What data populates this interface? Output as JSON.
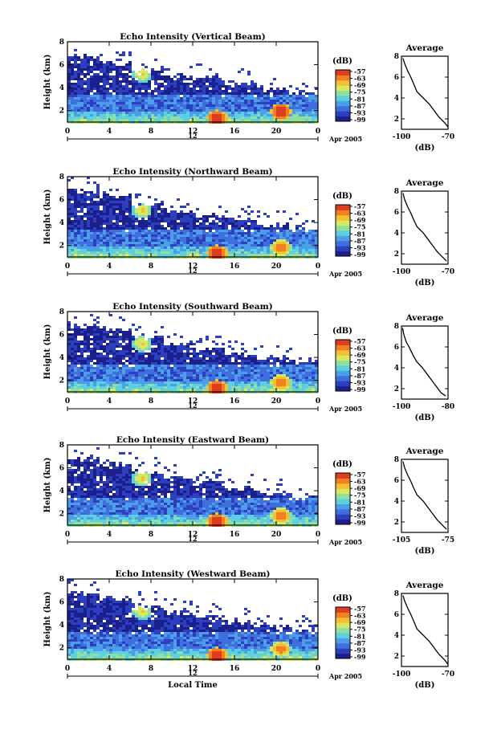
{
  "figure": {
    "common": {
      "ylabel": "Height (km)",
      "colorbar_unit": "(dB)",
      "colorbar_ticks": [
        "-57",
        "-63",
        "-69",
        "-75",
        "-81",
        "-87",
        "-93",
        "-99"
      ],
      "date_label": "Apr 2005",
      "x_ticks": [
        "0",
        "4",
        "8",
        "12",
        "16",
        "20",
        "0"
      ],
      "y_ticks": [
        "2",
        "4",
        "6",
        "8"
      ],
      "avg_title": "Average",
      "avg_xlabel": "(dB)",
      "bottom_xlabel": "Local Time"
    },
    "colors": [
      "#1a1f8c",
      "#2c3fbf",
      "#3f6fdc",
      "#4a9fe8",
      "#5ccfe0",
      "#8fe0a0",
      "#d8e860",
      "#f4c030",
      "#f08020",
      "#e03c20"
    ]
  },
  "chart_data": [
    {
      "type": "heatmap",
      "title": "Echo Intensity (Vertical Beam)",
      "xlabel": "",
      "ylabel": "Height (km)",
      "x": [
        0,
        24
      ],
      "ylim": [
        1,
        8
      ],
      "colorbar_range": [
        -99,
        -57
      ],
      "tick12": "12",
      "features": {
        "cloud_top_km": [
          6.8,
          6.3,
          5.6,
          5.2,
          4.9,
          4.4,
          4.0,
          3.6
        ],
        "hotspots": [
          [
            14.2,
            1.4,
            -57
          ],
          [
            20.3,
            2.0,
            -57
          ],
          [
            7.0,
            5.3,
            -69
          ]
        ]
      },
      "avg": {
        "title": "Average",
        "xlabel": "(dB)",
        "xticks": [
          "-100",
          "-70"
        ],
        "xlim": [
          -100,
          -70
        ],
        "ylim": [
          1,
          8
        ],
        "x": [
          -99,
          -98,
          -96,
          -94,
          -92,
          -90,
          -86,
          -82,
          -79,
          -76,
          -72,
          -70
        ],
        "y": [
          7.8,
          7.3,
          6.6,
          6.0,
          5.3,
          4.6,
          4.0,
          3.4,
          2.8,
          2.2,
          1.6,
          1.2
        ]
      }
    },
    {
      "type": "heatmap",
      "title": "Echo Intensity (Northward Beam)",
      "xlabel": "",
      "ylabel": "Height (km)",
      "x": [
        0,
        24
      ],
      "ylim": [
        1,
        8
      ],
      "colorbar_range": [
        -99,
        -57
      ],
      "tick12": "12",
      "features": {
        "cloud_top_km": [
          6.9,
          6.4,
          5.7,
          5.1,
          4.7,
          4.3,
          3.9,
          3.5
        ],
        "hotspots": [
          [
            14.2,
            1.4,
            -57
          ],
          [
            20.3,
            1.9,
            -63
          ],
          [
            7.0,
            5.2,
            -69
          ]
        ]
      },
      "avg": {
        "title": "Average",
        "xlabel": "(dB)",
        "xticks": [
          "-100",
          "-70"
        ],
        "xlim": [
          -100,
          -70
        ],
        "ylim": [
          1,
          8
        ],
        "x": [
          -99,
          -98,
          -96,
          -94,
          -92,
          -90,
          -86,
          -83,
          -80,
          -77,
          -73,
          -71
        ],
        "y": [
          7.8,
          7.2,
          6.5,
          5.9,
          5.2,
          4.6,
          4.0,
          3.4,
          2.8,
          2.2,
          1.6,
          1.3
        ]
      }
    },
    {
      "type": "heatmap",
      "title": "Echo Intensity (Southward Beam)",
      "xlabel": "",
      "ylabel": "Height (km)",
      "x": [
        0,
        24
      ],
      "ylim": [
        1,
        8
      ],
      "colorbar_range": [
        -99,
        -57
      ],
      "tick12": "12",
      "features": {
        "cloud_top_km": [
          6.9,
          6.5,
          5.8,
          5.3,
          4.8,
          4.4,
          4.0,
          3.7
        ],
        "hotspots": [
          [
            14.2,
            1.4,
            -57
          ],
          [
            20.3,
            1.9,
            -63
          ],
          [
            7.0,
            5.3,
            -69
          ]
        ]
      },
      "avg": {
        "title": "Average",
        "xlabel": "(dB)",
        "xticks": [
          "-100",
          "-80"
        ],
        "xlim": [
          -100,
          -80
        ],
        "ylim": [
          1,
          8
        ],
        "x": [
          -99.5,
          -99,
          -98,
          -96.5,
          -95,
          -93.5,
          -91,
          -89,
          -87,
          -85,
          -83,
          -81
        ],
        "y": [
          7.8,
          7.2,
          6.5,
          5.9,
          5.2,
          4.6,
          4.0,
          3.4,
          2.8,
          2.2,
          1.6,
          1.3
        ]
      }
    },
    {
      "type": "heatmap",
      "title": "Echo Intensity (Eastward Beam)",
      "xlabel": "",
      "ylabel": "Height (km)",
      "x": [
        0,
        24
      ],
      "ylim": [
        1,
        8
      ],
      "colorbar_range": [
        -99,
        -57
      ],
      "tick12": "12",
      "features": {
        "cloud_top_km": [
          6.8,
          6.4,
          5.7,
          5.1,
          4.7,
          4.3,
          3.9,
          3.5
        ],
        "hotspots": [
          [
            14.2,
            1.4,
            -57
          ],
          [
            20.3,
            1.9,
            -63
          ],
          [
            7.0,
            5.2,
            -69
          ]
        ]
      },
      "avg": {
        "title": "Average",
        "xlabel": "(dB)",
        "xticks": [
          "-105",
          "-75"
        ],
        "xlim": [
          -105,
          -75
        ],
        "ylim": [
          1,
          8
        ],
        "x": [
          -104,
          -103,
          -101,
          -99,
          -97,
          -95,
          -91,
          -88,
          -85,
          -82,
          -78,
          -76
        ],
        "y": [
          7.8,
          7.2,
          6.5,
          5.9,
          5.2,
          4.6,
          4.0,
          3.4,
          2.8,
          2.2,
          1.6,
          1.3
        ]
      }
    },
    {
      "type": "heatmap",
      "title": "Echo Intensity (Westward Beam)",
      "xlabel": "Local Time",
      "ylabel": "Height (km)",
      "x": [
        0,
        24
      ],
      "ylim": [
        1,
        8
      ],
      "colorbar_range": [
        -99,
        -57
      ],
      "tick12": "12",
      "features": {
        "cloud_top_km": [
          6.9,
          6.4,
          5.7,
          5.2,
          4.8,
          4.4,
          4.0,
          3.6
        ],
        "hotspots": [
          [
            14.2,
            1.4,
            -57
          ],
          [
            20.3,
            2.0,
            -63
          ],
          [
            7.0,
            5.3,
            -69
          ]
        ]
      },
      "avg": {
        "title": "Average",
        "xlabel": "(dB)",
        "xticks": [
          "-100",
          "-70"
        ],
        "xlim": [
          -100,
          -70
        ],
        "ylim": [
          1,
          8
        ],
        "x": [
          -99,
          -98,
          -96,
          -94,
          -92,
          -90,
          -86,
          -82,
          -79,
          -76,
          -72,
          -70
        ],
        "y": [
          7.8,
          7.3,
          6.6,
          6.0,
          5.3,
          4.6,
          4.0,
          3.4,
          2.8,
          2.2,
          1.6,
          1.2
        ]
      }
    }
  ]
}
